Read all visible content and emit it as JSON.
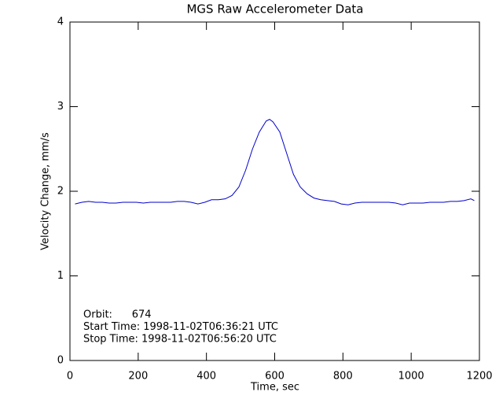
{
  "chart_data": {
    "type": "line",
    "title": "MGS Raw Accelerometer Data",
    "x_label": "Time, sec",
    "y_label": "Velocity Change, mm/s",
    "annotations": [
      "Orbit:      674",
      "Start Time: 1998-11-02T06:36:21 UTC",
      "Stop Time: 1998-11-02T06:56:20 UTC"
    ],
    "x": [
      15,
      35,
      55,
      75,
      95,
      115,
      135,
      155,
      175,
      195,
      215,
      235,
      255,
      275,
      295,
      315,
      335,
      355,
      375,
      395,
      415,
      435,
      455,
      475,
      495,
      515,
      535,
      555,
      575,
      585,
      595,
      615,
      635,
      655,
      675,
      695,
      715,
      735,
      755,
      775,
      795,
      815,
      835,
      855,
      875,
      895,
      915,
      935,
      955,
      975,
      995,
      1015,
      1035,
      1055,
      1075,
      1095,
      1115,
      1135,
      1155,
      1175,
      1185
    ],
    "series": [
      {
        "color": "#0000cc",
        "values": [
          1.85,
          1.87,
          1.88,
          1.87,
          1.87,
          1.86,
          1.86,
          1.87,
          1.87,
          1.87,
          1.86,
          1.87,
          1.87,
          1.87,
          1.87,
          1.88,
          1.88,
          1.87,
          1.85,
          1.87,
          1.9,
          1.9,
          1.91,
          1.95,
          2.05,
          2.25,
          2.5,
          2.7,
          2.83,
          2.85,
          2.82,
          2.7,
          2.45,
          2.2,
          2.05,
          1.97,
          1.92,
          1.9,
          1.89,
          1.88,
          1.85,
          1.84,
          1.86,
          1.87,
          1.87,
          1.87,
          1.87,
          1.87,
          1.86,
          1.84,
          1.86,
          1.86,
          1.86,
          1.87,
          1.87,
          1.87,
          1.88,
          1.88,
          1.89,
          1.91,
          1.89
        ]
      }
    ],
    "xlim": [
      0,
      1200
    ],
    "xticks": [
      0,
      200,
      400,
      600,
      800,
      1000,
      1200
    ],
    "ylim": [
      0,
      4
    ],
    "yticks": [
      0,
      1,
      2,
      3,
      4
    ]
  }
}
